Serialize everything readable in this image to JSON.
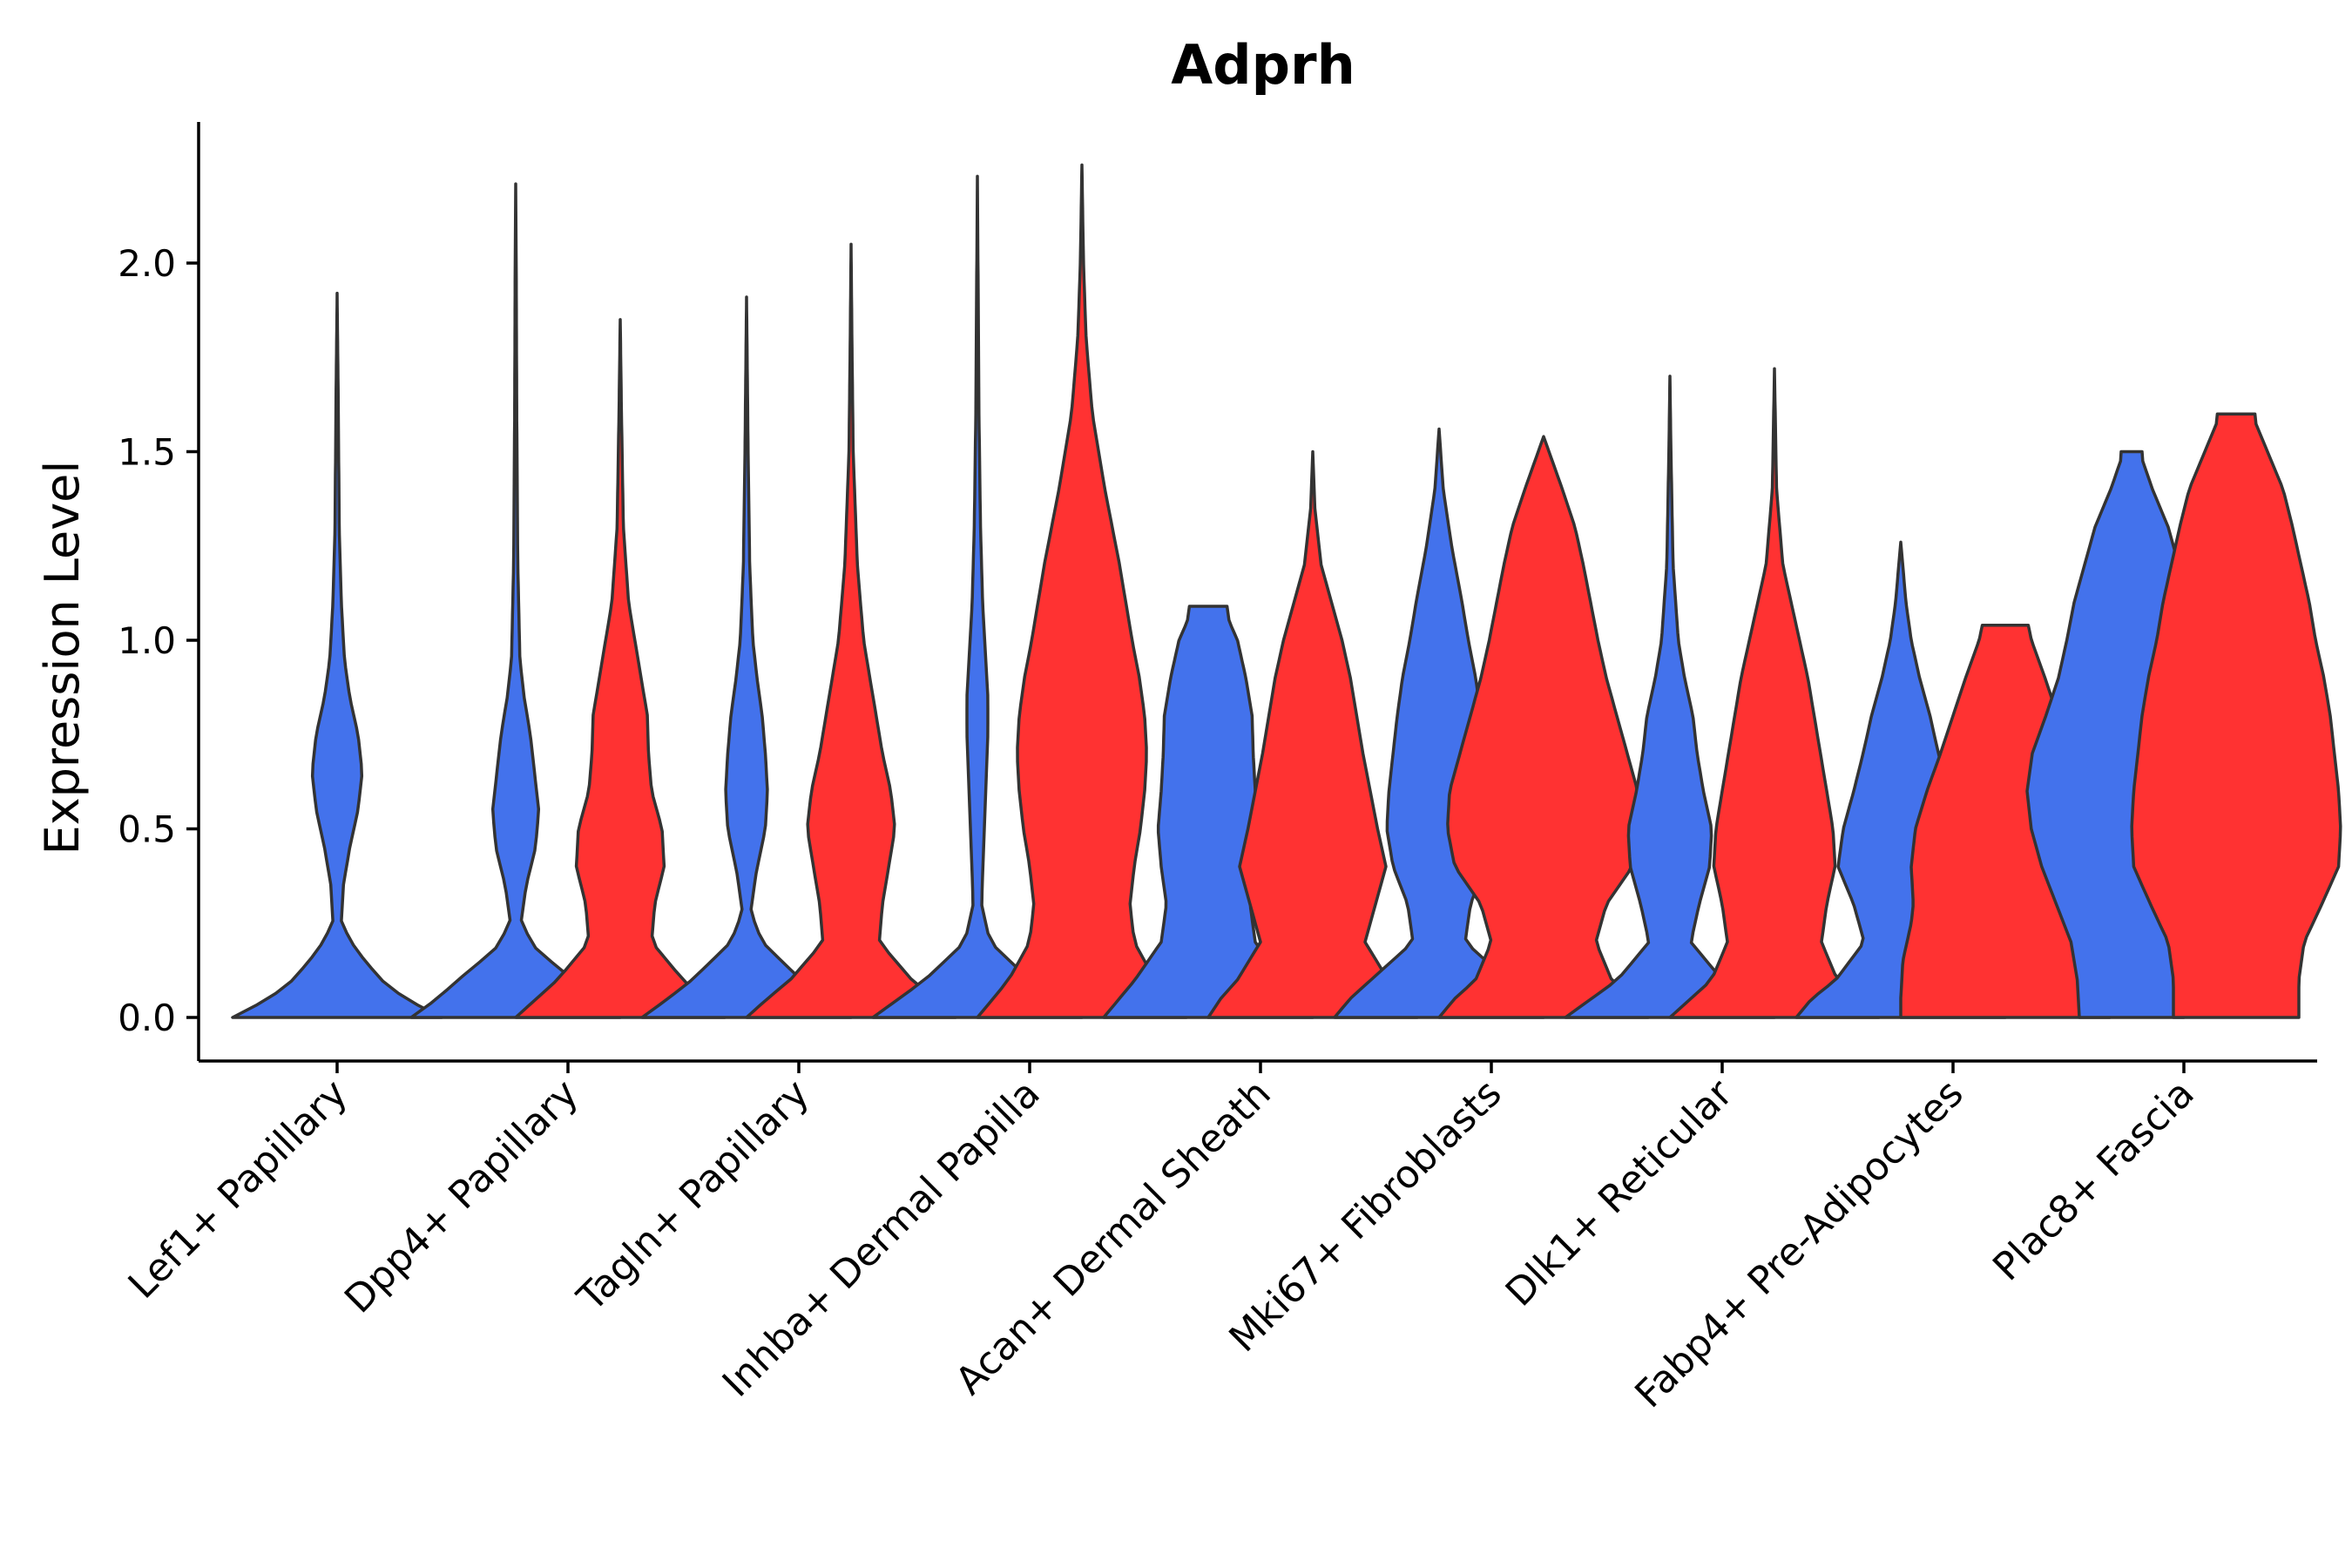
{
  "chart_data": {
    "type": "violin",
    "title": "Adprh",
    "xlabel": "",
    "ylabel": "Expression Level",
    "ylim": [
      -0.11,
      2.37
    ],
    "yticks": [
      0.0,
      0.5,
      1.0,
      1.5,
      2.0
    ],
    "ytick_labels": [
      "0.0",
      "0.5",
      "1.0",
      "1.5",
      "2.0"
    ],
    "grid": false,
    "legend": "none",
    "colors": {
      "blue": "#4372EC",
      "red": "#FF3232",
      "outline": "#333333"
    },
    "categories": [
      "Lef1+ Papillary",
      "Dpp4+ Papillary",
      "Tagln+ Papillary",
      "Inhba+ Dermal Papilla",
      "Acan+ Dermal Sheath",
      "Mki67+ Fibroblasts",
      "Dlk1+ Reticular",
      "Fabp4+ Pre-Adipocytes",
      "Plac8+ Fascia"
    ],
    "series": [
      {
        "name": "group-blue",
        "color": "#4372EC",
        "max_values": [
          1.92,
          2.21,
          1.91,
          2.23,
          1.09,
          1.56,
          1.7,
          1.26,
          1.5
        ],
        "profiles": [
          [
            [
              0,
              1.0
            ],
            [
              0.05,
              0.65
            ],
            [
              0.1,
              0.42
            ],
            [
              0.18,
              0.18
            ],
            [
              0.25,
              0.04
            ],
            [
              0.35,
              0.06
            ],
            [
              0.45,
              0.12
            ],
            [
              0.55,
              0.2
            ],
            [
              0.65,
              0.24
            ],
            [
              0.75,
              0.2
            ],
            [
              0.85,
              0.12
            ],
            [
              0.95,
              0.07
            ],
            [
              1.1,
              0.04
            ],
            [
              1.3,
              0.02
            ],
            [
              1.6,
              0.012
            ],
            [
              1.92,
              0.0
            ]
          ],
          [
            [
              0,
              1.0
            ],
            [
              0.05,
              0.75
            ],
            [
              0.1,
              0.55
            ],
            [
              0.18,
              0.2
            ],
            [
              0.25,
              0.05
            ],
            [
              0.35,
              0.1
            ],
            [
              0.45,
              0.19
            ],
            [
              0.55,
              0.22
            ],
            [
              0.65,
              0.18
            ],
            [
              0.75,
              0.14
            ],
            [
              0.85,
              0.08
            ],
            [
              0.95,
              0.04
            ],
            [
              1.2,
              0.02
            ],
            [
              1.6,
              0.01
            ],
            [
              2.0,
              0.005
            ],
            [
              2.21,
              0.0
            ]
          ],
          [
            [
              0,
              1.0
            ],
            [
              0.05,
              0.75
            ],
            [
              0.1,
              0.52
            ],
            [
              0.2,
              0.15
            ],
            [
              0.28,
              0.04
            ],
            [
              0.38,
              0.09
            ],
            [
              0.5,
              0.18
            ],
            [
              0.6,
              0.2
            ],
            [
              0.7,
              0.18
            ],
            [
              0.8,
              0.15
            ],
            [
              0.9,
              0.1
            ],
            [
              1.0,
              0.06
            ],
            [
              1.2,
              0.03
            ],
            [
              1.5,
              0.015
            ],
            [
              1.91,
              0.0
            ]
          ],
          [
            [
              0,
              1.0
            ],
            [
              0.05,
              0.75
            ],
            [
              0.1,
              0.5
            ],
            [
              0.2,
              0.12
            ],
            [
              0.3,
              0.04
            ],
            [
              0.45,
              0.06
            ],
            [
              0.6,
              0.08
            ],
            [
              0.75,
              0.1
            ],
            [
              0.85,
              0.1
            ],
            [
              0.95,
              0.08
            ],
            [
              1.1,
              0.05
            ],
            [
              1.3,
              0.03
            ],
            [
              1.6,
              0.015
            ],
            [
              1.9,
              0.008
            ],
            [
              2.23,
              0.0
            ]
          ],
          [
            [
              0,
              1.0
            ],
            [
              0.05,
              0.85
            ],
            [
              0.1,
              0.7
            ],
            [
              0.2,
              0.45
            ],
            [
              0.3,
              0.4
            ],
            [
              0.4,
              0.45
            ],
            [
              0.5,
              0.48
            ],
            [
              0.6,
              0.45
            ],
            [
              0.7,
              0.43
            ],
            [
              0.8,
              0.42
            ],
            [
              0.9,
              0.36
            ],
            [
              1.0,
              0.28
            ],
            [
              1.05,
              0.2
            ],
            [
              1.09,
              0.18
            ]
          ],
          [
            [
              0,
              1.0
            ],
            [
              0.05,
              0.85
            ],
            [
              0.1,
              0.65
            ],
            [
              0.2,
              0.25
            ],
            [
              0.3,
              0.3
            ],
            [
              0.4,
              0.44
            ],
            [
              0.5,
              0.5
            ],
            [
              0.6,
              0.48
            ],
            [
              0.7,
              0.44
            ],
            [
              0.8,
              0.4
            ],
            [
              0.9,
              0.35
            ],
            [
              1.0,
              0.28
            ],
            [
              1.1,
              0.22
            ],
            [
              1.25,
              0.12
            ],
            [
              1.4,
              0.04
            ],
            [
              1.56,
              0.0
            ]
          ],
          [
            [
              0,
              1.0
            ],
            [
              0.05,
              0.75
            ],
            [
              0.1,
              0.5
            ],
            [
              0.2,
              0.2
            ],
            [
              0.3,
              0.28
            ],
            [
              0.4,
              0.38
            ],
            [
              0.5,
              0.4
            ],
            [
              0.6,
              0.32
            ],
            [
              0.7,
              0.26
            ],
            [
              0.8,
              0.22
            ],
            [
              0.9,
              0.14
            ],
            [
              1.0,
              0.08
            ],
            [
              1.2,
              0.03
            ],
            [
              1.5,
              0.01
            ],
            [
              1.7,
              0.0
            ]
          ],
          [
            [
              0,
              1.0
            ],
            [
              0.05,
              0.85
            ],
            [
              0.1,
              0.62
            ],
            [
              0.2,
              0.35
            ],
            [
              0.3,
              0.45
            ],
            [
              0.4,
              0.6
            ],
            [
              0.5,
              0.55
            ],
            [
              0.6,
              0.45
            ],
            [
              0.7,
              0.36
            ],
            [
              0.8,
              0.28
            ],
            [
              0.9,
              0.18
            ],
            [
              1.0,
              0.1
            ],
            [
              1.1,
              0.05
            ],
            [
              1.26,
              0.0
            ]
          ],
          [
            [
              0,
              0.5
            ],
            [
              0.1,
              0.52
            ],
            [
              0.2,
              0.58
            ],
            [
              0.3,
              0.72
            ],
            [
              0.4,
              0.86
            ],
            [
              0.5,
              0.96
            ],
            [
              0.6,
              1.0
            ],
            [
              0.7,
              0.95
            ],
            [
              0.8,
              0.82
            ],
            [
              0.9,
              0.7
            ],
            [
              1.0,
              0.62
            ],
            [
              1.1,
              0.55
            ],
            [
              1.2,
              0.45
            ],
            [
              1.3,
              0.35
            ],
            [
              1.4,
              0.2
            ],
            [
              1.48,
              0.1
            ],
            [
              1.5,
              0.1
            ]
          ]
        ]
      },
      {
        "name": "group-red",
        "color": "#FF3232",
        "max_values": [
          null,
          1.85,
          2.05,
          2.26,
          1.5,
          1.54,
          1.72,
          1.04,
          1.6
        ],
        "profiles": [
          null,
          [
            [
              0,
              1.0
            ],
            [
              0.05,
              0.8
            ],
            [
              0.1,
              0.6
            ],
            [
              0.2,
              0.3
            ],
            [
              0.3,
              0.33
            ],
            [
              0.4,
              0.42
            ],
            [
              0.5,
              0.4
            ],
            [
              0.6,
              0.3
            ],
            [
              0.7,
              0.27
            ],
            [
              0.8,
              0.26
            ],
            [
              0.9,
              0.2
            ],
            [
              1.0,
              0.14
            ],
            [
              1.1,
              0.08
            ],
            [
              1.3,
              0.03
            ],
            [
              1.6,
              0.012
            ],
            [
              1.85,
              0.0
            ]
          ],
          [
            [
              0,
              1.0
            ],
            [
              0.05,
              0.8
            ],
            [
              0.1,
              0.58
            ],
            [
              0.2,
              0.27
            ],
            [
              0.3,
              0.3
            ],
            [
              0.4,
              0.36
            ],
            [
              0.5,
              0.42
            ],
            [
              0.6,
              0.38
            ],
            [
              0.7,
              0.3
            ],
            [
              0.8,
              0.24
            ],
            [
              0.9,
              0.18
            ],
            [
              1.0,
              0.12
            ],
            [
              1.2,
              0.06
            ],
            [
              1.5,
              0.02
            ],
            [
              1.8,
              0.008
            ],
            [
              2.05,
              0.0
            ]
          ],
          [
            [
              0,
              1.0
            ],
            [
              0.05,
              0.85
            ],
            [
              0.1,
              0.7
            ],
            [
              0.2,
              0.5
            ],
            [
              0.3,
              0.46
            ],
            [
              0.4,
              0.5
            ],
            [
              0.5,
              0.56
            ],
            [
              0.6,
              0.6
            ],
            [
              0.7,
              0.62
            ],
            [
              0.8,
              0.6
            ],
            [
              0.9,
              0.55
            ],
            [
              1.0,
              0.48
            ],
            [
              1.2,
              0.36
            ],
            [
              1.4,
              0.22
            ],
            [
              1.6,
              0.1
            ],
            [
              1.8,
              0.04
            ],
            [
              2.0,
              0.015
            ],
            [
              2.26,
              0.0
            ]
          ],
          [
            [
              0,
              1.0
            ],
            [
              0.05,
              0.88
            ],
            [
              0.1,
              0.72
            ],
            [
              0.2,
              0.5
            ],
            [
              0.3,
              0.6
            ],
            [
              0.4,
              0.7
            ],
            [
              0.5,
              0.62
            ],
            [
              0.6,
              0.55
            ],
            [
              0.7,
              0.48
            ],
            [
              0.8,
              0.42
            ],
            [
              0.9,
              0.36
            ],
            [
              1.0,
              0.28
            ],
            [
              1.1,
              0.18
            ],
            [
              1.2,
              0.08
            ],
            [
              1.35,
              0.02
            ],
            [
              1.5,
              0.0
            ]
          ],
          [
            [
              0,
              1.0
            ],
            [
              0.05,
              0.85
            ],
            [
              0.1,
              0.65
            ],
            [
              0.2,
              0.5
            ],
            [
              0.3,
              0.6
            ],
            [
              0.4,
              0.85
            ],
            [
              0.5,
              0.92
            ],
            [
              0.6,
              0.9
            ],
            [
              0.7,
              0.8
            ],
            [
              0.8,
              0.7
            ],
            [
              0.9,
              0.6
            ],
            [
              1.0,
              0.52
            ],
            [
              1.1,
              0.45
            ],
            [
              1.2,
              0.38
            ],
            [
              1.3,
              0.3
            ],
            [
              1.4,
              0.18
            ],
            [
              1.54,
              0.0
            ]
          ],
          [
            [
              0,
              1.0
            ],
            [
              0.05,
              0.8
            ],
            [
              0.1,
              0.6
            ],
            [
              0.2,
              0.45
            ],
            [
              0.3,
              0.5
            ],
            [
              0.4,
              0.58
            ],
            [
              0.5,
              0.56
            ],
            [
              0.6,
              0.5
            ],
            [
              0.7,
              0.44
            ],
            [
              0.8,
              0.38
            ],
            [
              0.9,
              0.32
            ],
            [
              1.0,
              0.24
            ],
            [
              1.1,
              0.16
            ],
            [
              1.2,
              0.08
            ],
            [
              1.4,
              0.02
            ],
            [
              1.72,
              0.0
            ]
          ],
          [
            [
              0,
              1.0
            ],
            [
              0.05,
              1.0
            ],
            [
              0.15,
              0.98
            ],
            [
              0.25,
              0.9
            ],
            [
              0.3,
              0.88
            ],
            [
              0.4,
              0.9
            ],
            [
              0.5,
              0.86
            ],
            [
              0.6,
              0.75
            ],
            [
              0.7,
              0.62
            ],
            [
              0.8,
              0.5
            ],
            [
              0.9,
              0.38
            ],
            [
              1.0,
              0.25
            ],
            [
              1.04,
              0.22
            ]
          ],
          [
            [
              0,
              0.6
            ],
            [
              0.1,
              0.6
            ],
            [
              0.2,
              0.65
            ],
            [
              0.3,
              0.82
            ],
            [
              0.4,
              0.98
            ],
            [
              0.5,
              1.0
            ],
            [
              0.6,
              0.98
            ],
            [
              0.7,
              0.94
            ],
            [
              0.8,
              0.9
            ],
            [
              0.9,
              0.84
            ],
            [
              1.0,
              0.76
            ],
            [
              1.1,
              0.7
            ],
            [
              1.2,
              0.62
            ],
            [
              1.3,
              0.54
            ],
            [
              1.4,
              0.45
            ],
            [
              1.5,
              0.3
            ],
            [
              1.58,
              0.18
            ],
            [
              1.6,
              0.18
            ]
          ]
        ]
      }
    ]
  }
}
